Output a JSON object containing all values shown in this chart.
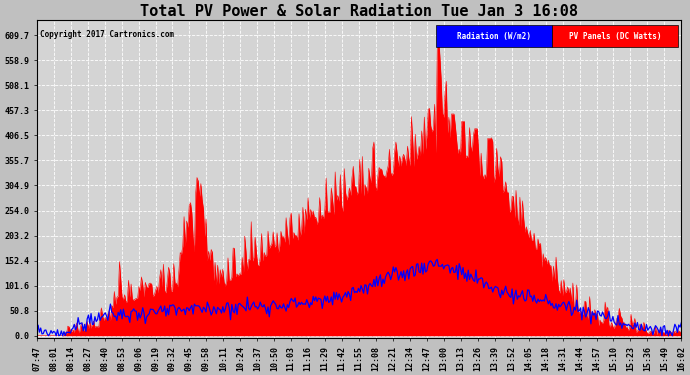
{
  "title": "Total PV Power & Solar Radiation Tue Jan 3 16:08",
  "copyright": "Copyright 2017 Cartronics.com",
  "legend_items": [
    "Radiation (W/m2)",
    "PV Panels (DC Watts)"
  ],
  "legend_bg_colors": [
    "blue",
    "red"
  ],
  "yticks": [
    0.0,
    50.8,
    101.6,
    152.4,
    203.2,
    254.0,
    304.9,
    355.7,
    406.5,
    457.3,
    508.1,
    558.9,
    609.7
  ],
  "ymax": 640,
  "fig_bg_color": "#c0c0c0",
  "plot_bg_color": "#d4d4d4",
  "grid_color": "#ffffff",
  "title_fontsize": 11,
  "tick_fontsize": 6,
  "time_labels": [
    "07:47",
    "08:01",
    "08:14",
    "08:27",
    "08:40",
    "08:53",
    "09:06",
    "09:19",
    "09:32",
    "09:45",
    "09:58",
    "10:11",
    "10:24",
    "10:37",
    "10:50",
    "11:03",
    "11:16",
    "11:29",
    "11:42",
    "11:55",
    "12:08",
    "12:21",
    "12:34",
    "12:47",
    "13:00",
    "13:13",
    "13:26",
    "13:39",
    "13:52",
    "14:05",
    "14:18",
    "14:31",
    "14:44",
    "14:57",
    "15:10",
    "15:23",
    "15:36",
    "15:49",
    "16:02"
  ]
}
